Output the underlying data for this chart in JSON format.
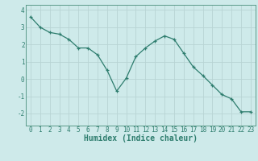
{
  "x": [
    0,
    1,
    2,
    3,
    4,
    5,
    6,
    7,
    8,
    9,
    10,
    11,
    12,
    13,
    14,
    15,
    16,
    17,
    18,
    19,
    20,
    21,
    22,
    23
  ],
  "y": [
    3.6,
    3.0,
    2.7,
    2.6,
    2.3,
    1.8,
    1.8,
    1.4,
    0.5,
    -0.7,
    0.05,
    1.3,
    1.8,
    2.2,
    2.5,
    2.3,
    1.5,
    0.7,
    0.2,
    -0.35,
    -0.9,
    -1.15,
    -1.9,
    -1.9
  ],
  "line_color": "#2e7d6e",
  "marker": "+",
  "bg_color": "#ceeaea",
  "grid_color": "#b8d4d4",
  "xlabel": "Humidex (Indice chaleur)",
  "xlim": [
    -0.5,
    23.5
  ],
  "ylim": [
    -2.7,
    4.3
  ],
  "yticks": [
    -2,
    -1,
    0,
    1,
    2,
    3,
    4
  ],
  "xticks": [
    0,
    1,
    2,
    3,
    4,
    5,
    6,
    7,
    8,
    9,
    10,
    11,
    12,
    13,
    14,
    15,
    16,
    17,
    18,
    19,
    20,
    21,
    22,
    23
  ],
  "spine_color": "#5a9a8a",
  "tick_color": "#2e7d6e",
  "label_fontsize": 6.5,
  "tick_fontsize": 5.5,
  "xlabel_fontsize": 7.0
}
